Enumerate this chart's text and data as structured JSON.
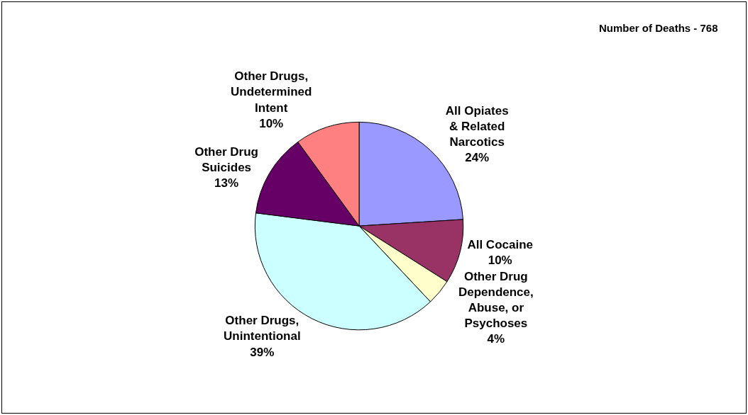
{
  "chart_data": {
    "type": "pie",
    "categories": [
      "All Opiates & Related Narcotics",
      "All Cocaine",
      "Other Drug Dependence, Abuse, or Psychoses",
      "Other Drugs, Unintentional",
      "Other Drug Suicides",
      "Other Drugs, Undetermined Intent"
    ],
    "values": [
      24,
      10,
      4,
      39,
      13,
      10
    ],
    "value_labels": [
      "24%",
      "10%",
      "4%",
      "39%",
      "13%",
      "10%"
    ],
    "colors": [
      "#9999ff",
      "#993366",
      "#ffffcc",
      "#ccffff",
      "#660066",
      "#ff8080"
    ],
    "annotations": [
      "Number of Deaths - 768"
    ],
    "legend": false
  }
}
